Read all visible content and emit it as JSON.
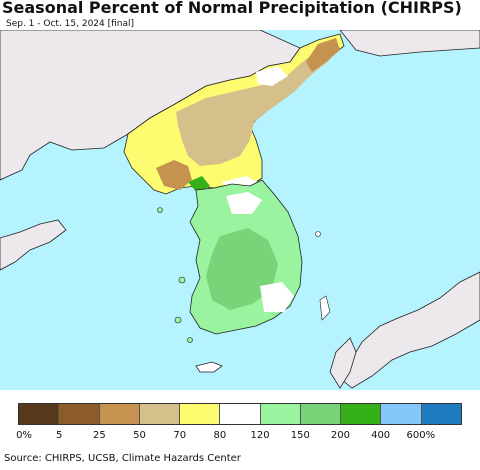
{
  "header": {
    "title": "Seasonal Percent of Normal Precipitation (CHIRPS)",
    "subtitle": "Sep. 1 - Oct. 15, 2024 [final]"
  },
  "map": {
    "ocean_color": "#b5f3ff",
    "land_outside_color": "#ece8ec"
  },
  "legend": {
    "colors": [
      "#56391a",
      "#8d5b27",
      "#c5924f",
      "#d5c08b",
      "#fdfc70",
      "#ffffff",
      "#9af39e",
      "#79d379",
      "#36b019",
      "#84c8f9",
      "#1f7bbf"
    ],
    "labels": [
      "0%",
      "5",
      "25",
      "50",
      "70",
      "80",
      "120",
      "150",
      "200",
      "400",
      "600%"
    ]
  },
  "footer": {
    "source": "Source: CHIRPS, UCSB, Climate Hazards Center"
  }
}
